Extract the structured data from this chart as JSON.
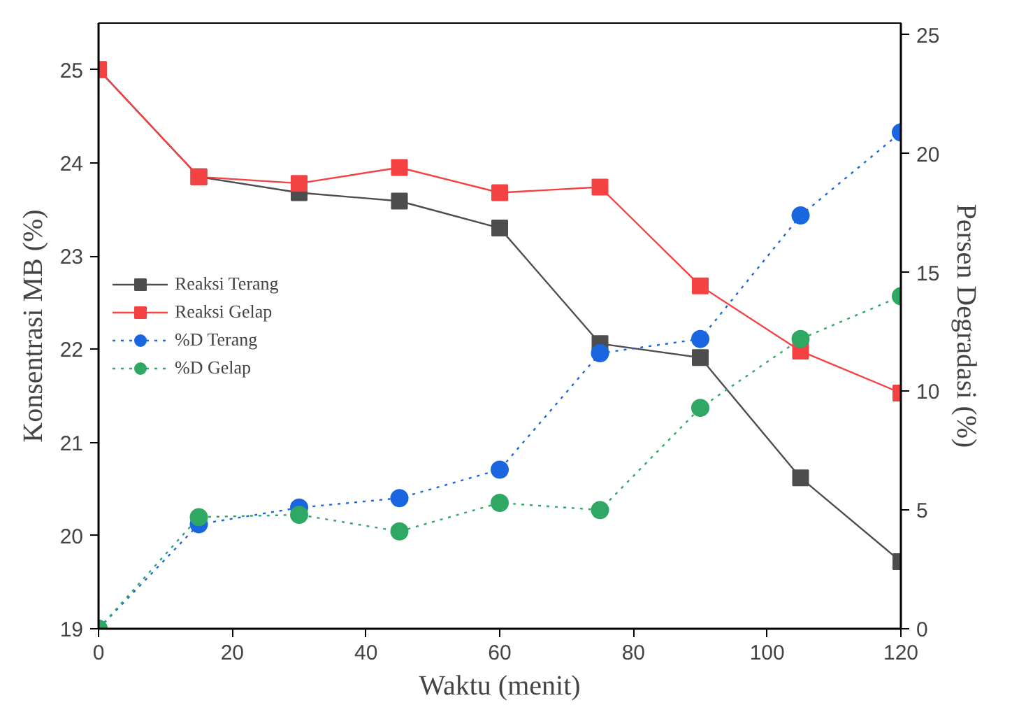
{
  "chart_data": {
    "type": "line",
    "xlabel": "Waktu (menit)",
    "ylabel": "Konsentrasi MB (%)",
    "y2label": "Persen Degradasi (%)",
    "x": [
      0,
      15,
      30,
      45,
      60,
      75,
      90,
      105,
      120
    ],
    "xlim": [
      0,
      120
    ],
    "xticks": [
      0,
      20,
      40,
      60,
      80,
      100,
      120
    ],
    "ylim": [
      19,
      25.5
    ],
    "yticks": [
      19,
      20,
      21,
      22,
      23,
      24,
      25
    ],
    "y2lim": [
      0,
      25.5
    ],
    "y2ticks": [
      0,
      5,
      10,
      15,
      20,
      25
    ],
    "grid": false,
    "legend": "left",
    "series": [
      {
        "name": "Reaksi Terang",
        "color": "#4d4d4d",
        "marker": "square",
        "line_style": "solid",
        "values": [
          25,
          23.85,
          23.68,
          23.59,
          23.3,
          22.06,
          21.91,
          20.62,
          19.72
        ]
      },
      {
        "name": "Reaksi Gelap",
        "color": "#f44242",
        "marker": "square",
        "line_style": "solid",
        "values": [
          25,
          23.85,
          23.78,
          23.95,
          23.68,
          23.74,
          22.68,
          21.98,
          21.53
        ]
      },
      {
        "name": "%D Terang",
        "color": "#1a66e0",
        "marker": "circle",
        "line_style": "dotted",
        "axis": "y2",
        "values": [
          0,
          4.4,
          5.1,
          5.5,
          6.7,
          11.6,
          12.2,
          17.4,
          20.9
        ]
      },
      {
        "name": "%D Gelap",
        "color": "#2ea862",
        "marker": "circle",
        "line_style": "dotted",
        "axis": "y2",
        "values": [
          0,
          4.7,
          4.8,
          4.1,
          5.3,
          5.0,
          9.3,
          12.2,
          14.0
        ]
      }
    ]
  }
}
